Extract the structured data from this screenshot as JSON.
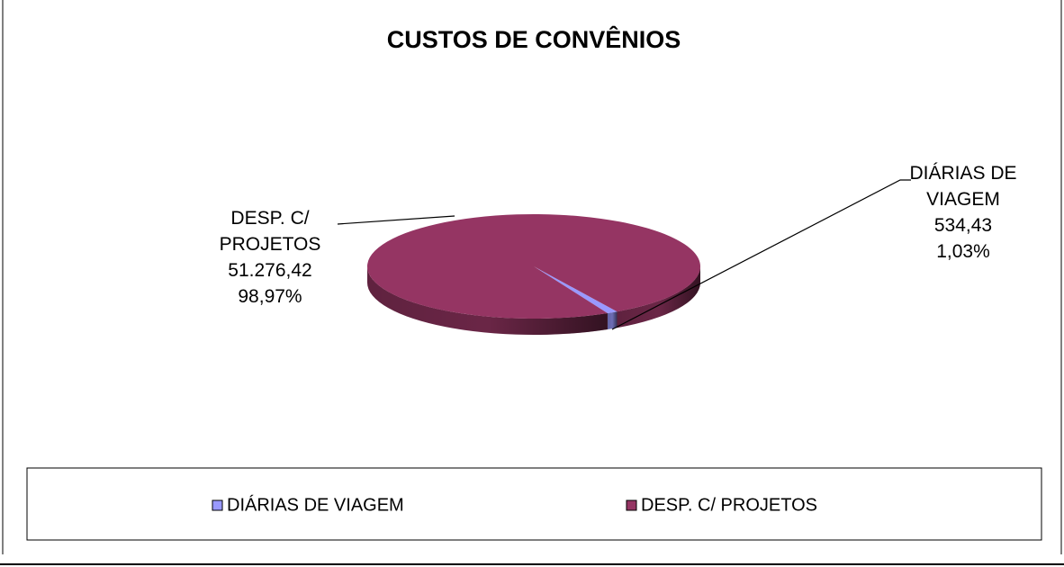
{
  "chart_data": {
    "type": "pie",
    "title": "CUSTOS DE CONVÊNIOS",
    "categories": [
      "DIÁRIAS DE VIAGEM",
      "DESP. C/ PROJETOS"
    ],
    "values": [
      534.43,
      51276.42
    ],
    "value_labels": [
      "534,43",
      "51.276,42"
    ],
    "percents": [
      1.03,
      98.97
    ],
    "percent_labels": [
      "1,03%",
      "98,97%"
    ],
    "colors": [
      "#9999ff",
      "#953563"
    ],
    "legend": "bottom"
  }
}
